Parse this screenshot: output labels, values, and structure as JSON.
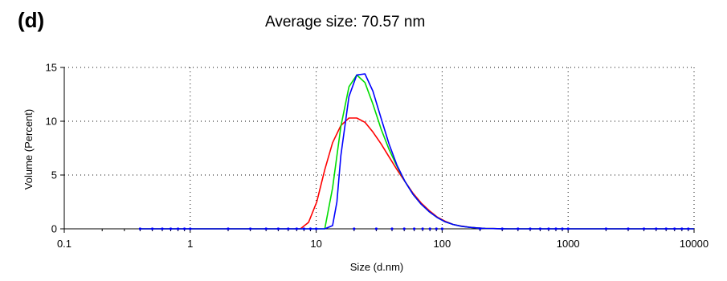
{
  "panel_label": "(d)",
  "chart_data": {
    "type": "line",
    "title": "Average size: 70.57 nm",
    "xlabel": "Size (d.nm)",
    "ylabel": "Volume (Percent)",
    "xscale": "log",
    "xlim": [
      0.1,
      10000
    ],
    "ylim": [
      0,
      15
    ],
    "xticks": [
      0.1,
      1,
      10,
      100,
      1000,
      10000
    ],
    "xtick_labels": [
      "0.1",
      "1",
      "10",
      "100",
      "1000",
      "10000"
    ],
    "yticks": [
      0,
      5,
      10,
      15
    ],
    "ytick_labels": [
      "0",
      "5",
      "10",
      "15"
    ],
    "grid": "dotted",
    "legend": "none",
    "series": [
      {
        "color": "#ff0000",
        "x": [
          0.4,
          1,
          3,
          6,
          7.5,
          8.7,
          10.1,
          11.7,
          13.5,
          15.7,
          18.2,
          21.0,
          24.4,
          28.2,
          32.7,
          37.8,
          43.8,
          50.7,
          58.8,
          68.1,
          78.8,
          91.3,
          105.7,
          122.4,
          141.8,
          164.2,
          190.1,
          220.2,
          255.0,
          295.3,
          342.0,
          1000,
          10000
        ],
        "y": [
          0,
          0,
          0,
          0,
          0,
          0.6,
          2.5,
          5.5,
          8.0,
          9.6,
          10.3,
          10.3,
          9.9,
          9.0,
          7.9,
          6.7,
          5.5,
          4.4,
          3.3,
          2.4,
          1.7,
          1.1,
          0.7,
          0.4,
          0.25,
          0.15,
          0.08,
          0.04,
          0.02,
          0.01,
          0,
          0,
          0
        ]
      },
      {
        "color": "#00dd00",
        "x": [
          0.4,
          1,
          3,
          6,
          10,
          11.7,
          13.5,
          15.7,
          18.2,
          21.0,
          24.4,
          28.2,
          32.7,
          37.8,
          43.8,
          50.7,
          58.8,
          68.1,
          78.8,
          91.3,
          105.7,
          122.4,
          141.8,
          164.2,
          190.1,
          220.2,
          255.0,
          295.3,
          342.0,
          1000,
          10000
        ],
        "y": [
          0,
          0,
          0,
          0,
          0,
          0,
          3.8,
          9.5,
          13.2,
          14.3,
          13.6,
          11.6,
          9.3,
          7.4,
          5.8,
          4.4,
          3.2,
          2.3,
          1.6,
          1.05,
          0.65,
          0.4,
          0.24,
          0.14,
          0.08,
          0.04,
          0.02,
          0.01,
          0,
          0,
          0
        ]
      },
      {
        "color": "#0000ff",
        "x": [
          0.4,
          1,
          3,
          6,
          10,
          11.7,
          13.5,
          14.6,
          15.7,
          18.2,
          21.0,
          24.4,
          28.2,
          32.7,
          37.8,
          43.8,
          50.7,
          58.8,
          68.1,
          78.8,
          91.3,
          105.7,
          122.4,
          141.8,
          164.2,
          190.1,
          220.2,
          255.0,
          295.3,
          342.0,
          1000,
          10000
        ],
        "y": [
          0,
          0,
          0,
          0,
          0,
          0,
          0.3,
          2.5,
          6.8,
          12.3,
          14.3,
          14.4,
          12.8,
          10.3,
          7.9,
          5.9,
          4.4,
          3.2,
          2.3,
          1.6,
          1.05,
          0.65,
          0.4,
          0.24,
          0.14,
          0.08,
          0.04,
          0.02,
          0.01,
          0,
          0,
          0
        ]
      }
    ]
  }
}
